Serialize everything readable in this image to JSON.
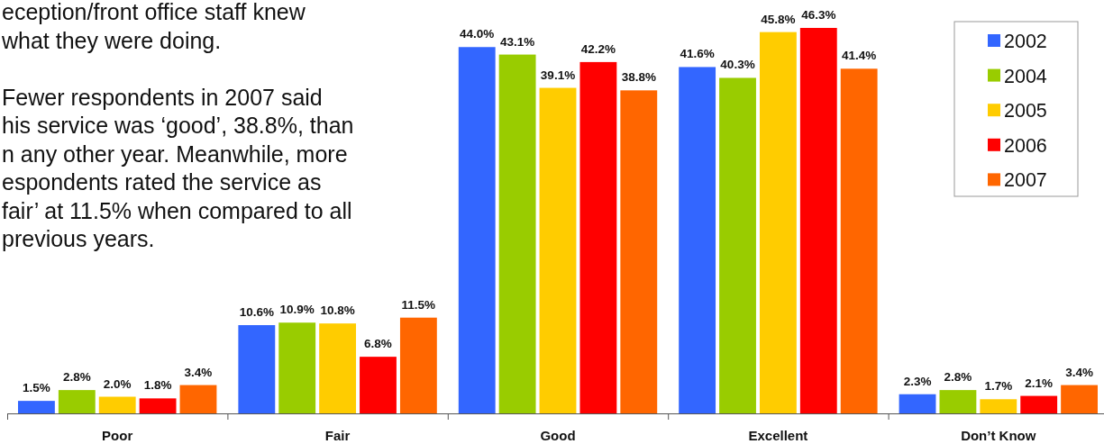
{
  "chart_data": {
    "type": "bar",
    "annotations": [
      "eception/front office staff knew\nwhat they were doing.",
      "Fewer respondents in 2007 said\nhis service was ‘good’, 38.8%, than\nn any other year. Meanwhile, more\nespondents rated the service as\nfair’ at 11.5% when compared to all\nprevious years."
    ],
    "categories": [
      "Poor",
      "Fair",
      "Good",
      "Excellent",
      "Don’t Know"
    ],
    "series": [
      {
        "name": "2002",
        "color": "#3366ff",
        "values": [
          1.5,
          10.6,
          44.0,
          41.6,
          2.3
        ],
        "value_labels": [
          "1.5%",
          "10.6%",
          "44.0%",
          "41.6%",
          "2.3%"
        ]
      },
      {
        "name": "2004",
        "color": "#99cc00",
        "values": [
          2.8,
          10.9,
          43.1,
          40.3,
          2.8
        ],
        "value_labels": [
          "2.8%",
          "10.9%",
          "43.1%",
          "40.3%",
          "2.8%"
        ]
      },
      {
        "name": "2005",
        "color": "#ffcc00",
        "values": [
          2.0,
          10.8,
          39.1,
          45.8,
          1.7
        ],
        "value_labels": [
          "2.0%",
          "10.8%",
          "39.1%",
          "45.8%",
          "1.7%"
        ]
      },
      {
        "name": "2006",
        "color": "#ff0000",
        "values": [
          1.8,
          6.8,
          42.2,
          46.3,
          2.1
        ],
        "value_labels": [
          "1.8%",
          "6.8%",
          "42.2%",
          "46.3%",
          "2.1%"
        ]
      },
      {
        "name": "2007",
        "color": "#ff6600",
        "values": [
          3.4,
          11.5,
          38.8,
          41.4,
          3.4
        ],
        "value_labels": [
          "3.4%",
          "11.5%",
          "38.8%",
          "41.4%",
          "3.4%"
        ]
      }
    ],
    "legend": "top right"
  }
}
